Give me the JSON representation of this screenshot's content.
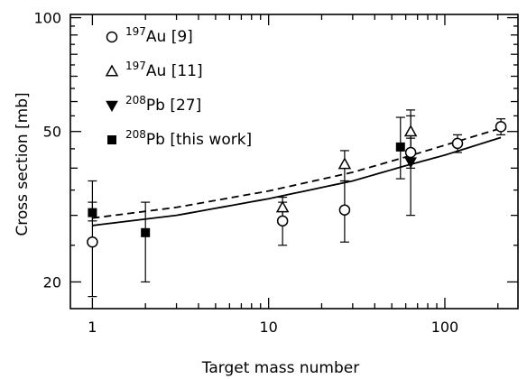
{
  "chart_data": {
    "type": "scatter",
    "xlabel": "Target mass number",
    "ylabel": "Cross section [mb]",
    "xscale": "log",
    "yscale": "log",
    "xlim": [
      0.75,
      260
    ],
    "ylim": [
      17,
      102
    ],
    "x_ticks": [
      {
        "value": 1,
        "label": "1"
      },
      {
        "value": 10,
        "label": "10"
      },
      {
        "value": 100,
        "label": "100"
      }
    ],
    "y_ticks": [
      {
        "value": 20,
        "label": "20"
      },
      {
        "value": 50,
        "label": "50"
      },
      {
        "value": 100,
        "label": "100"
      }
    ],
    "legend_position": "top-left",
    "series": [
      {
        "name": "Au [9]",
        "isotope": "197",
        "marker": "open-circle",
        "points": [
          {
            "x": 1,
            "y": 25.5,
            "err_lo": 18.3,
            "err_hi": 32.5
          },
          {
            "x": 12,
            "y": 29.0,
            "err_lo": 25.0,
            "err_hi": 32.5
          },
          {
            "x": 27,
            "y": 31.0,
            "err_lo": 25.5,
            "err_hi": 37.0
          },
          {
            "x": 64,
            "y": 44.0,
            "err_lo": 40.0,
            "err_hi": 48.0
          },
          {
            "x": 118,
            "y": 46.5,
            "err_lo": 44.0,
            "err_hi": 49.0
          },
          {
            "x": 208,
            "y": 51.5,
            "err_lo": 49.0,
            "err_hi": 54.0
          }
        ]
      },
      {
        "name": "Au [11]",
        "isotope": "197",
        "marker": "open-triangle-up",
        "points": [
          {
            "x": 12,
            "y": 31.5,
            "err_lo": 29.5,
            "err_hi": 33.5
          },
          {
            "x": 27,
            "y": 41.0,
            "err_lo": 37.0,
            "err_hi": 44.5
          },
          {
            "x": 64,
            "y": 50.0,
            "err_lo": 44.0,
            "err_hi": 57.0
          }
        ]
      },
      {
        "name": "Pb [27]",
        "isotope": "208",
        "marker": "filled-triangle-down",
        "points": [
          {
            "x": 64,
            "y": 41.5,
            "err_lo": 30.0,
            "err_hi": 55.0
          }
        ]
      },
      {
        "name": "Pb [this work]",
        "isotope": "208",
        "marker": "filled-square",
        "points": [
          {
            "x": 1,
            "y": 30.5,
            "err_lo": 29.0,
            "err_hi": 37.0
          },
          {
            "x": 2,
            "y": 27.0,
            "err_lo": 20.0,
            "err_hi": 32.5
          },
          {
            "x": 56,
            "y": 45.5,
            "err_lo": 37.5,
            "err_hi": 54.5
          }
        ]
      }
    ],
    "curves": [
      {
        "style": "dashed",
        "points": [
          [
            1,
            29.5
          ],
          [
            3,
            31.5
          ],
          [
            10,
            34.8
          ],
          [
            30,
            39.0
          ],
          [
            60,
            42.8
          ],
          [
            100,
            46.0
          ],
          [
            208,
            51.0
          ]
        ]
      },
      {
        "style": "solid",
        "points": [
          [
            1,
            28.2
          ],
          [
            3,
            30.0
          ],
          [
            10,
            33.2
          ],
          [
            30,
            37.0
          ],
          [
            60,
            40.6
          ],
          [
            100,
            43.3
          ],
          [
            208,
            48.2
          ]
        ]
      }
    ]
  }
}
